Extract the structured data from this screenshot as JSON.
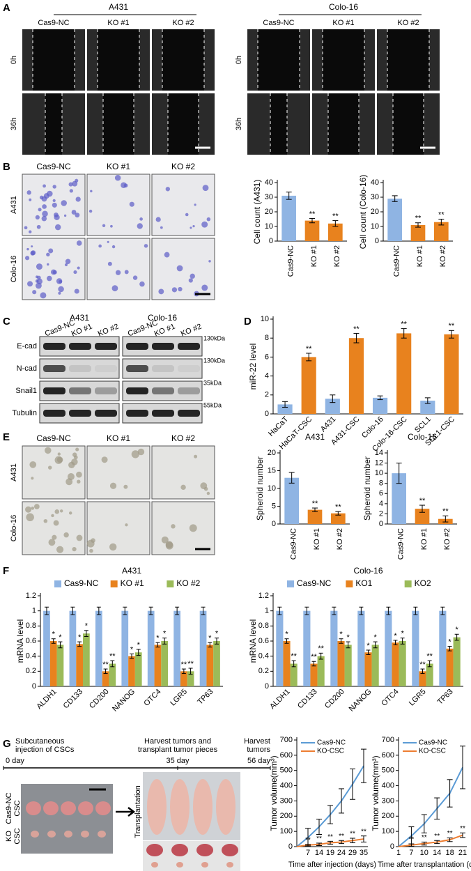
{
  "panels": {
    "A": {
      "letter": "A",
      "groups": [
        {
          "name": "A431",
          "columns": [
            "Cas9-NC",
            "KO #1",
            "KO #2"
          ]
        },
        {
          "name": "Colo-16",
          "columns": [
            "Cas9-NC",
            "KO #1",
            "KO #2"
          ]
        }
      ],
      "rows": [
        "0h",
        "36h"
      ]
    },
    "B": {
      "letter": "B",
      "columns": [
        "Cas9-NC",
        "KO #1",
        "KO #2"
      ],
      "rows": [
        "A431",
        "Colo-16"
      ]
    },
    "C": {
      "letter": "C",
      "groups": [
        {
          "name": "A431",
          "lanes": [
            "Cas9-NC",
            "KO #1",
            "KO #2"
          ]
        },
        {
          "name": "Colo-16",
          "lanes": [
            "Cas9-NC",
            "KO #1",
            "KO #2"
          ]
        }
      ],
      "proteins": [
        "E-cad",
        "N-cad",
        "Snail1",
        "Tubulin"
      ],
      "markers": [
        "130kDa",
        "130kDa",
        "35kDa",
        "55kDa"
      ]
    },
    "D": {
      "letter": "D"
    },
    "E": {
      "letter": "E",
      "columns": [
        "Cas9-NC",
        "KO #1",
        "KO #2"
      ],
      "rows": [
        "A431",
        "Colo-16"
      ]
    },
    "F": {
      "letter": "F"
    },
    "G": {
      "letter": "G",
      "timeline": [
        {
          "event": [
            "Subcutaneous",
            "injection of CSCs"
          ],
          "day": "0 day"
        },
        {
          "event": [
            "Harvest tumors and",
            "transplant tumor pieces"
          ],
          "day": "35 day"
        },
        {
          "event": [
            "Harvest",
            "tumors"
          ],
          "day": "56 day"
        }
      ],
      "rows": [
        [
          "Cas9-NC",
          "CSC"
        ],
        [
          "KO",
          "CSC"
        ]
      ],
      "image_label": "Transplantation"
    }
  },
  "chart_data": [
    {
      "type": "bar",
      "y_label": "Cell count (A431)",
      "categories": [
        "Cas9-NC",
        "KO #1",
        "KO #2"
      ],
      "values": [
        31,
        14,
        12
      ],
      "errors": [
        2.5,
        1.5,
        2
      ],
      "significance": [
        null,
        "**",
        "**"
      ],
      "colors": [
        "#8fb4e3",
        "#e8821e",
        "#e8821e"
      ],
      "ylim": [
        0,
        40
      ],
      "yticks": [
        0,
        10,
        20,
        30,
        40
      ]
    },
    {
      "type": "bar",
      "y_label": "Cell count (Colo-16)",
      "categories": [
        "Cas9-NC",
        "KO #1",
        "KO #2"
      ],
      "values": [
        29,
        11,
        13
      ],
      "errors": [
        2,
        1.5,
        2
      ],
      "significance": [
        null,
        "**",
        "**"
      ],
      "colors": [
        "#8fb4e3",
        "#e8821e",
        "#e8821e"
      ],
      "ylim": [
        0,
        40
      ],
      "yticks": [
        0,
        10,
        20,
        30,
        40
      ]
    },
    {
      "type": "bar",
      "y_label": "miR-22 level",
      "categories": [
        "HaCaT",
        "HaCaT-CSC",
        "A431",
        "A431-CSC",
        "Colo-16",
        "Colo-16-CSC",
        "SCL1",
        "SCL1-CSC"
      ],
      "values": [
        1,
        6,
        1.6,
        8,
        1.7,
        8.5,
        1.4,
        8.4
      ],
      "errors": [
        0.3,
        0.4,
        0.4,
        0.5,
        0.2,
        0.5,
        0.3,
        0.4
      ],
      "significance": [
        null,
        "**",
        null,
        "**",
        null,
        "**",
        null,
        "**"
      ],
      "colors": [
        "#8fb4e3",
        "#e8821e",
        "#8fb4e3",
        "#e8821e",
        "#8fb4e3",
        "#e8821e",
        "#8fb4e3",
        "#e8821e"
      ],
      "ylim": [
        0,
        10
      ],
      "yticks": [
        0,
        2,
        4,
        6,
        8,
        10
      ]
    },
    {
      "type": "bar",
      "title": "A431",
      "y_label": "Spheroid number",
      "categories": [
        "Cas9-NC",
        "KO #1",
        "KO #2"
      ],
      "values": [
        13,
        4,
        3
      ],
      "errors": [
        1.5,
        0.5,
        0.5
      ],
      "significance": [
        null,
        "**",
        "**"
      ],
      "colors": [
        "#8fb4e3",
        "#e8821e",
        "#e8821e"
      ],
      "ylim": [
        0,
        20
      ],
      "yticks": [
        0,
        5,
        10,
        15,
        20
      ]
    },
    {
      "type": "bar",
      "title": "Colo-16",
      "y_label": "Spheroid number",
      "categories": [
        "Cas9-NC",
        "KO #1",
        "KO #2"
      ],
      "values": [
        10,
        3,
        1
      ],
      "errors": [
        2,
        0.7,
        0.6
      ],
      "significance": [
        null,
        "**",
        "**"
      ],
      "colors": [
        "#8fb4e3",
        "#e8821e",
        "#e8821e"
      ],
      "ylim": [
        0,
        14
      ],
      "yticks": [
        0,
        2,
        4,
        6,
        8,
        10,
        12,
        14
      ]
    },
    {
      "type": "grouped-bar",
      "title": "A431",
      "y_label": "mRNA level",
      "categories": [
        "ALDH1",
        "CD133",
        "CD200",
        "NANOG",
        "OTC4",
        "LGR5",
        "TP63"
      ],
      "series": [
        {
          "name": "Cas9-NC",
          "color": "#8fb4e3",
          "values": [
            1,
            1,
            1,
            1,
            1,
            1,
            1
          ],
          "errors": [
            0.05,
            0.05,
            0.05,
            0.05,
            0.05,
            0.05,
            0.05
          ]
        },
        {
          "name": "KO #1",
          "color": "#e8821e",
          "values": [
            0.6,
            0.56,
            0.2,
            0.4,
            0.55,
            0.2,
            0.55
          ],
          "errors": [
            0.03,
            0.03,
            0.03,
            0.03,
            0.03,
            0.03,
            0.03
          ],
          "significance": [
            "*",
            "*",
            "**",
            "*",
            "*",
            "**",
            "*"
          ]
        },
        {
          "name": "KO #2",
          "color": "#9bbb59",
          "values": [
            0.55,
            0.7,
            0.3,
            0.45,
            0.6,
            0.2,
            0.6
          ],
          "errors": [
            0.04,
            0.04,
            0.04,
            0.04,
            0.04,
            0.04,
            0.04
          ],
          "significance": [
            "*",
            "*",
            "**",
            "*",
            "*",
            "**",
            "*"
          ]
        }
      ],
      "ylim": [
        0,
        1.2
      ],
      "yticks": [
        0,
        0.2,
        0.4,
        0.6,
        0.8,
        1,
        1.2
      ]
    },
    {
      "type": "grouped-bar",
      "title": "Colo-16",
      "y_label": "mRNA level",
      "categories": [
        "ALDH1",
        "CD133",
        "CD200",
        "NANOG",
        "OTC4",
        "LGR5",
        "TP63"
      ],
      "series": [
        {
          "name": "Cas9-NC",
          "color": "#8fb4e3",
          "values": [
            1,
            1,
            1,
            1,
            1,
            1,
            1
          ],
          "errors": [
            0.05,
            0.05,
            0.05,
            0.05,
            0.05,
            0.05,
            0.05
          ]
        },
        {
          "name": "KO1",
          "color": "#e8821e",
          "values": [
            0.6,
            0.3,
            0.6,
            0.45,
            0.58,
            0.2,
            0.5
          ],
          "errors": [
            0.03,
            0.03,
            0.03,
            0.03,
            0.03,
            0.03,
            0.03
          ],
          "significance": [
            "*",
            "**",
            "*",
            "*",
            "*",
            "**",
            "*"
          ]
        },
        {
          "name": "KO2",
          "color": "#9bbb59",
          "values": [
            0.3,
            0.4,
            0.55,
            0.55,
            0.6,
            0.3,
            0.65
          ],
          "errors": [
            0.04,
            0.04,
            0.04,
            0.04,
            0.04,
            0.04,
            0.04
          ],
          "significance": [
            "**",
            "**",
            "*",
            "*",
            "*",
            "**",
            "*"
          ]
        }
      ],
      "ylim": [
        0,
        1.2
      ],
      "yticks": [
        0,
        0.2,
        0.4,
        0.6,
        0.8,
        1,
        1.2
      ]
    },
    {
      "type": "line",
      "y_label": "Tumor volume(mm³)",
      "x_label": "Time after injection (days)",
      "categories": [
        null,
        "7",
        "14",
        "19",
        "24",
        "29",
        "35"
      ],
      "series": [
        {
          "name": "Cas9-NC",
          "color": "#5b9bd5",
          "values": [
            0,
            60,
            130,
            210,
            300,
            410,
            530
          ],
          "errors": [
            0,
            60,
            50,
            60,
            80,
            100,
            110
          ]
        },
        {
          "name": "KO-CSC",
          "color": "#ed7d31",
          "values": [
            0,
            10,
            15,
            25,
            30,
            40,
            50
          ],
          "errors": [
            0,
            5,
            8,
            10,
            10,
            15,
            20
          ],
          "significance": [
            null,
            "**",
            "**",
            "**",
            "**",
            "**",
            "**"
          ]
        }
      ],
      "ylim": [
        0,
        700
      ],
      "yticks": [
        0,
        100,
        200,
        300,
        400,
        500,
        600,
        700
      ]
    },
    {
      "type": "line",
      "y_label": "Tumor volume(mm³)",
      "x_label": "Time after transplantation (days)",
      "categories": [
        "1",
        "7",
        "10",
        "14",
        "18",
        "21"
      ],
      "series": [
        {
          "name": "Cas9-NC",
          "color": "#5b9bd5",
          "values": [
            0,
            70,
            150,
            250,
            350,
            520
          ],
          "errors": [
            0,
            60,
            60,
            70,
            90,
            140
          ]
        },
        {
          "name": "KO-CSC",
          "color": "#ed7d31",
          "values": [
            0,
            10,
            20,
            30,
            45,
            75
          ],
          "errors": [
            0,
            8,
            10,
            10,
            12,
            15
          ],
          "significance": [
            null,
            "**",
            "**",
            "**",
            "**",
            "**"
          ]
        }
      ],
      "ylim": [
        0,
        700
      ],
      "yticks": [
        0,
        100,
        200,
        300,
        400,
        500,
        600,
        700
      ]
    }
  ]
}
